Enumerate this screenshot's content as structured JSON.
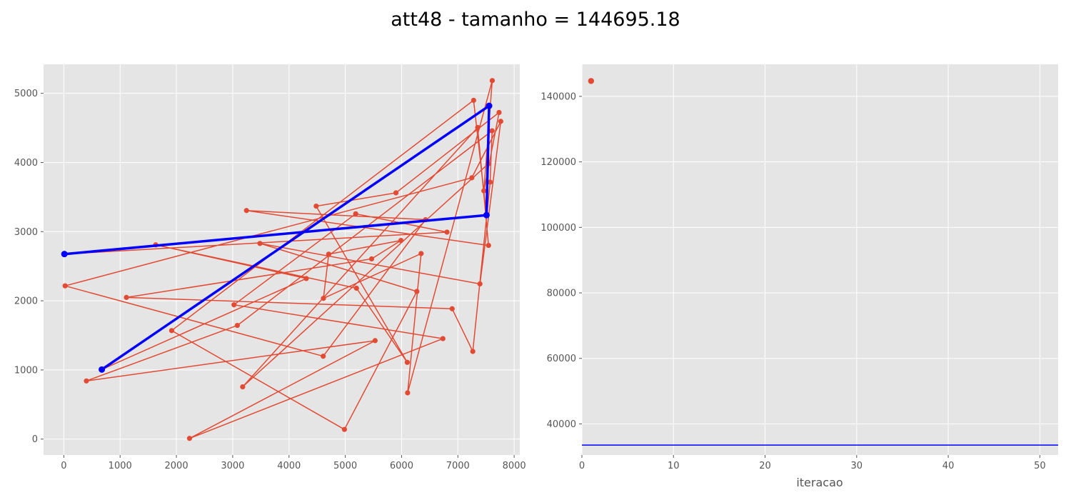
{
  "figure_title": "att48 - tamanho = 144695.18",
  "colors": {
    "tour": "#E24A33",
    "highlight": "#0000FF",
    "panel_bg": "#E5E5E5",
    "grid": "#FFFFFF"
  },
  "chart_data": [
    {
      "type": "line",
      "name": "tour",
      "title": "",
      "xlabel": "",
      "ylabel": "",
      "xlim": [
        -360,
        8100
      ],
      "ylim": [
        -230,
        5420
      ],
      "xticks": [
        0,
        1000,
        2000,
        3000,
        4000,
        5000,
        6000,
        7000,
        8000
      ],
      "yticks": [
        0,
        1000,
        2000,
        3000,
        4000,
        5000
      ],
      "grid": true,
      "series": [
        {
          "name": "",
          "markers": true,
          "points": [
            [
              6734,
              1453
            ],
            [
              2233,
              10
            ],
            [
              5530,
              1424
            ],
            [
              401,
              841
            ],
            [
              3082,
              1644
            ],
            [
              7608,
              4458
            ],
            [
              7573,
              3716
            ],
            [
              7265,
              1268
            ],
            [
              6898,
              1885
            ],
            [
              1112,
              2049
            ],
            [
              5468,
              2606
            ],
            [
              5989,
              2873
            ],
            [
              4706,
              2674
            ],
            [
              4612,
              2035
            ],
            [
              6347,
              2683
            ],
            [
              6107,
              669
            ],
            [
              7611,
              5184
            ],
            [
              7462,
              3590
            ],
            [
              7732,
              4723
            ],
            [
              5900,
              3561
            ],
            [
              4483,
              3369
            ],
            [
              6101,
              1110
            ],
            [
              5199,
              2182
            ],
            [
              1633,
              2809
            ],
            [
              4307,
              2322
            ],
            [
              675,
              1006
            ],
            [
              7555,
              4819
            ],
            [
              7541,
              3981
            ],
            [
              3177,
              756
            ],
            [
              7352,
              4506
            ],
            [
              7545,
              2801
            ],
            [
              3245,
              3305
            ],
            [
              6426,
              3173
            ],
            [
              4608,
              1198
            ],
            [
              23,
              2216
            ],
            [
              7248,
              3779
            ],
            [
              7762,
              4595
            ],
            [
              7392,
              2244
            ],
            [
              3484,
              2829
            ],
            [
              6271,
              2135
            ],
            [
              4985,
              140
            ],
            [
              1916,
              1569
            ],
            [
              7280,
              4899
            ],
            [
              7509,
              3239
            ],
            [
              10,
              2676
            ],
            [
              6807,
              2993
            ],
            [
              5185,
              3258
            ],
            [
              3023,
              1942
            ],
            [
              6734,
              1453
            ]
          ]
        },
        {
          "name": "",
          "markers": true,
          "points": [
            [
              675,
              1006
            ],
            [
              7555,
              4819
            ],
            [
              7509,
              3239
            ],
            [
              10,
              2676
            ]
          ]
        }
      ]
    },
    {
      "type": "line",
      "title": "",
      "xlabel": "iteracao",
      "ylabel": "",
      "xlim": [
        0,
        52
      ],
      "ylim": [
        30500,
        149800
      ],
      "xticks": [
        0,
        10,
        20,
        30,
        40,
        50
      ],
      "yticks": [
        40000,
        60000,
        80000,
        100000,
        120000,
        140000
      ],
      "grid": true,
      "series": [
        {
          "name": "",
          "points": [
            [
              1,
              144695.18
            ]
          ],
          "markers": true
        },
        {
          "name": "",
          "hline": 33523,
          "markers": false
        }
      ]
    }
  ]
}
